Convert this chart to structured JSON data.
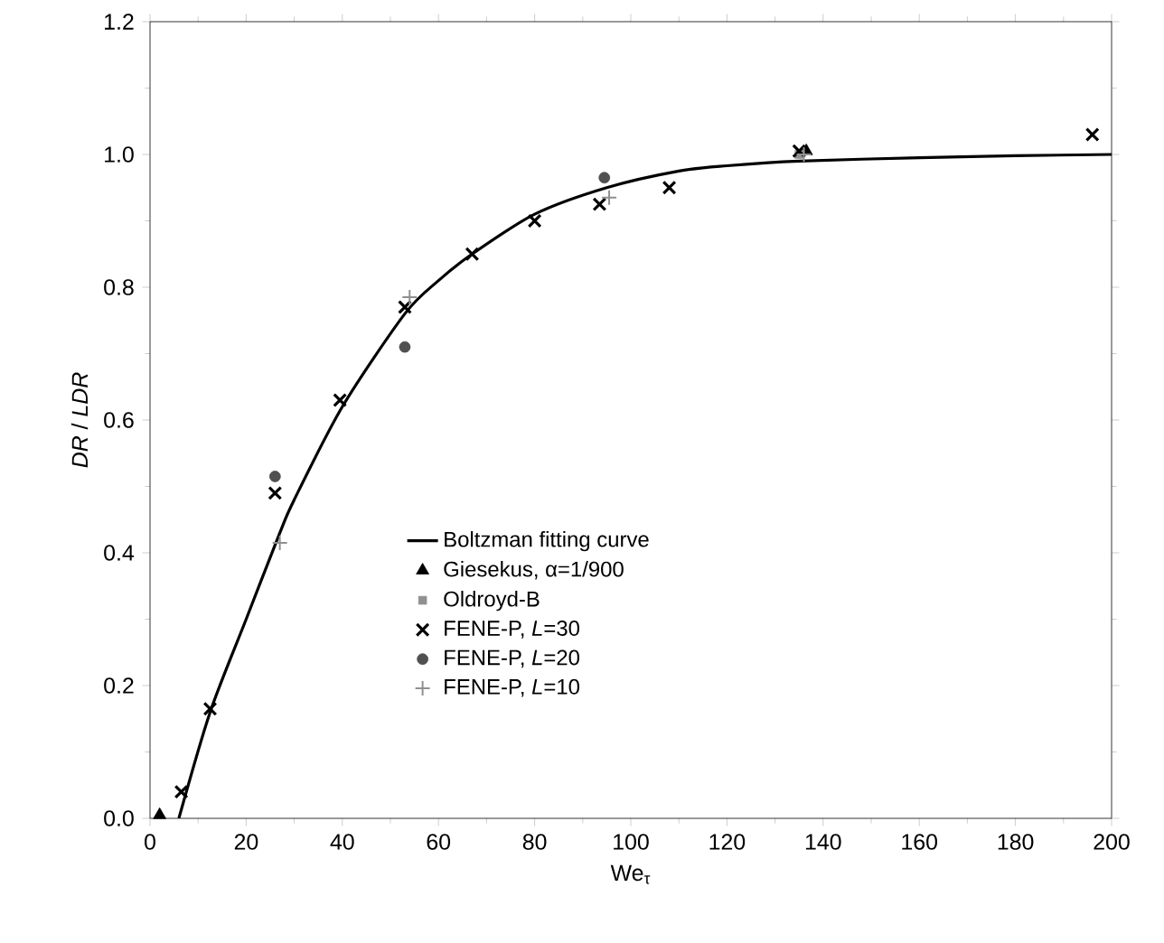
{
  "chart_data": {
    "type": "scatter",
    "xlabel": "We$_{τ}$",
    "ylabel": "*DR* / *LDR*",
    "xlim": [
      0,
      200
    ],
    "ylim": [
      0,
      1.2
    ],
    "xticks": [
      0,
      20,
      40,
      60,
      80,
      100,
      120,
      140,
      160,
      180,
      200
    ],
    "yticks": [
      {
        "value": 0,
        "label": "0.0"
      },
      {
        "value": 0.2,
        "label": "0.2"
      },
      {
        "value": 0.4,
        "label": "0.4"
      },
      {
        "value": 0.6,
        "label": "0.6"
      },
      {
        "value": 0.8,
        "label": "0.8"
      },
      {
        "value": 1.0,
        "label": "1.0"
      },
      {
        "value": 1.2,
        "label": "1.2"
      }
    ],
    "grid": false,
    "legend": "bottom",
    "series": [
      {
        "name": "Boltzman fitting curve",
        "type": "line",
        "marker": "none",
        "line_style": "solid",
        "color": "#000000",
        "x": [
          6,
          12.5,
          20,
          27,
          30,
          40,
          53,
          60,
          67,
          80,
          95,
          110,
          120,
          135,
          160,
          180,
          200
        ],
        "values": [
          0,
          0.16,
          0.3,
          0.43,
          0.48,
          0.62,
          0.76,
          0.81,
          0.85,
          0.91,
          0.95,
          0.975,
          0.983,
          0.99,
          0.995,
          0.998,
          1.0
        ]
      },
      {
        "name": "Giesekus, α=1/900",
        "marker": "triangle",
        "color": "#000000",
        "x": [
          2,
          136.5
        ],
        "values": [
          0.005,
          1.005
        ]
      },
      {
        "name": "Oldroyd-B",
        "marker": "square",
        "color": "#909090",
        "x": [
          135
        ],
        "values": [
          1.0
        ]
      },
      {
        "name": "FENE-P, *L*=30",
        "marker": "cross",
        "color": "#000000",
        "x": [
          6.5,
          12.5,
          26,
          39.5,
          53,
          67,
          80,
          93.5,
          108,
          135,
          196
        ],
        "values": [
          0.04,
          0.165,
          0.49,
          0.63,
          0.77,
          0.85,
          0.9,
          0.925,
          0.95,
          1.005,
          1.03
        ]
      },
      {
        "name": "FENE-P, *L*=20",
        "marker": "circle",
        "color": "#505050",
        "x": [
          26,
          53,
          94.5
        ],
        "values": [
          0.515,
          0.71,
          0.965
        ]
      },
      {
        "name": "FENE-P, *L*=10",
        "marker": "plus",
        "color": "#909090",
        "x": [
          27,
          54,
          95.5,
          136
        ],
        "values": [
          0.415,
          0.785,
          0.935,
          1.0
        ]
      }
    ]
  }
}
